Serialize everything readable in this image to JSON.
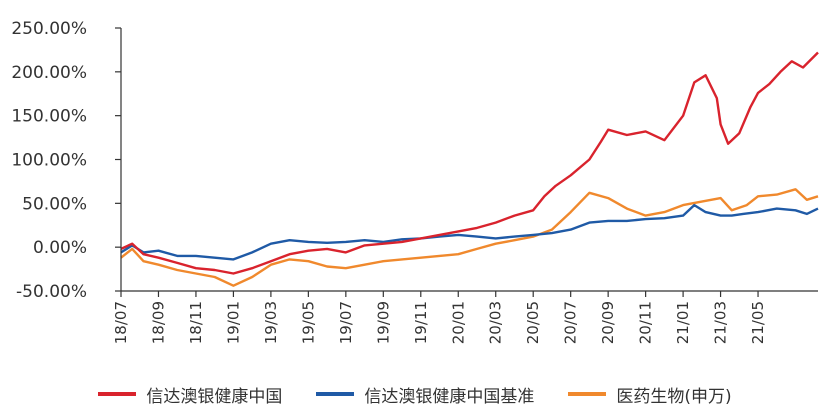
{
  "chart_data": {
    "type": "line",
    "x": [
      "18/07",
      "18/09",
      "18/11",
      "19/01",
      "19/03",
      "19/05",
      "19/07",
      "19/09",
      "19/11",
      "20/01",
      "20/03",
      "20/05",
      "20/07",
      "20/09",
      "20/11",
      "21/01",
      "21/03",
      "21/05"
    ],
    "ylim": [
      -50,
      250
    ],
    "yticks": [
      -50,
      0,
      50,
      100,
      150,
      200,
      250
    ],
    "ytick_labels": [
      "-50.00%",
      "0.00%",
      "50.00%",
      "100.00%",
      "150.00%",
      "200.00%",
      "250.00%"
    ],
    "x_range": [
      0,
      18.6
    ],
    "grid": false,
    "legend_position": "bottom",
    "series": [
      {
        "name": "信达澳银健康中国",
        "color": "#d9232d",
        "values": [
          [
            0,
            -2
          ],
          [
            0.3,
            4
          ],
          [
            0.6,
            -8
          ],
          [
            1,
            -12
          ],
          [
            1.5,
            -18
          ],
          [
            2,
            -24
          ],
          [
            2.5,
            -26
          ],
          [
            3,
            -30
          ],
          [
            3.5,
            -24
          ],
          [
            4,
            -16
          ],
          [
            4.5,
            -8
          ],
          [
            5,
            -4
          ],
          [
            5.5,
            -2
          ],
          [
            6,
            -6
          ],
          [
            6.5,
            2
          ],
          [
            7,
            4
          ],
          [
            7.5,
            6
          ],
          [
            8,
            10
          ],
          [
            8.5,
            14
          ],
          [
            9,
            18
          ],
          [
            9.5,
            22
          ],
          [
            10,
            28
          ],
          [
            10.5,
            36
          ],
          [
            11,
            42
          ],
          [
            11.3,
            58
          ],
          [
            11.6,
            70
          ],
          [
            12,
            82
          ],
          [
            12.5,
            100
          ],
          [
            12.8,
            120
          ],
          [
            13,
            134
          ],
          [
            13.5,
            128
          ],
          [
            14,
            132
          ],
          [
            14.5,
            122
          ],
          [
            15,
            150
          ],
          [
            15.3,
            188
          ],
          [
            15.6,
            196
          ],
          [
            15.9,
            170
          ],
          [
            16,
            140
          ],
          [
            16.2,
            118
          ],
          [
            16.5,
            130
          ],
          [
            16.8,
            160
          ],
          [
            17,
            176
          ],
          [
            17.3,
            186
          ],
          [
            17.6,
            200
          ],
          [
            17.9,
            212
          ],
          [
            18.2,
            205
          ],
          [
            18.6,
            222
          ]
        ]
      },
      {
        "name": "信达澳银健康中国基准",
        "color": "#1f5aa6",
        "values": [
          [
            0,
            -6
          ],
          [
            0.3,
            2
          ],
          [
            0.6,
            -6
          ],
          [
            1,
            -4
          ],
          [
            1.5,
            -10
          ],
          [
            2,
            -10
          ],
          [
            2.5,
            -12
          ],
          [
            3,
            -14
          ],
          [
            3.5,
            -6
          ],
          [
            4,
            4
          ],
          [
            4.5,
            8
          ],
          [
            5,
            6
          ],
          [
            5.5,
            5
          ],
          [
            6,
            6
          ],
          [
            6.5,
            8
          ],
          [
            7,
            6
          ],
          [
            7.5,
            9
          ],
          [
            8,
            10
          ],
          [
            8.5,
            12
          ],
          [
            9,
            14
          ],
          [
            9.5,
            12
          ],
          [
            10,
            10
          ],
          [
            10.5,
            12
          ],
          [
            11,
            14
          ],
          [
            11.5,
            16
          ],
          [
            12,
            20
          ],
          [
            12.5,
            28
          ],
          [
            13,
            30
          ],
          [
            13.5,
            30
          ],
          [
            14,
            32
          ],
          [
            14.5,
            33
          ],
          [
            15,
            36
          ],
          [
            15.3,
            48
          ],
          [
            15.6,
            40
          ],
          [
            16,
            36
          ],
          [
            16.3,
            36
          ],
          [
            16.6,
            38
          ],
          [
            17,
            40
          ],
          [
            17.5,
            44
          ],
          [
            18,
            42
          ],
          [
            18.3,
            38
          ],
          [
            18.6,
            44
          ]
        ]
      },
      {
        "name": "医药生物(申万)",
        "color": "#f0892d",
        "values": [
          [
            0,
            -12
          ],
          [
            0.3,
            -2
          ],
          [
            0.6,
            -16
          ],
          [
            1,
            -20
          ],
          [
            1.5,
            -26
          ],
          [
            2,
            -30
          ],
          [
            2.5,
            -34
          ],
          [
            3,
            -44
          ],
          [
            3.5,
            -34
          ],
          [
            4,
            -20
          ],
          [
            4.5,
            -14
          ],
          [
            5,
            -16
          ],
          [
            5.5,
            -22
          ],
          [
            6,
            -24
          ],
          [
            6.5,
            -20
          ],
          [
            7,
            -16
          ],
          [
            7.5,
            -14
          ],
          [
            8,
            -12
          ],
          [
            8.5,
            -10
          ],
          [
            9,
            -8
          ],
          [
            9.5,
            -2
          ],
          [
            10,
            4
          ],
          [
            10.5,
            8
          ],
          [
            11,
            12
          ],
          [
            11.5,
            20
          ],
          [
            12,
            40
          ],
          [
            12.5,
            62
          ],
          [
            13,
            56
          ],
          [
            13.5,
            44
          ],
          [
            14,
            36
          ],
          [
            14.5,
            40
          ],
          [
            15,
            48
          ],
          [
            15.5,
            52
          ],
          [
            16,
            56
          ],
          [
            16.3,
            42
          ],
          [
            16.7,
            48
          ],
          [
            17,
            58
          ],
          [
            17.5,
            60
          ],
          [
            18,
            66
          ],
          [
            18.3,
            54
          ],
          [
            18.6,
            58
          ]
        ]
      }
    ]
  }
}
